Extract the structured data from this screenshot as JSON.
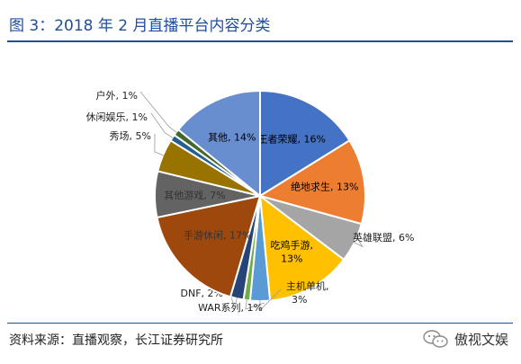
{
  "header": {
    "title": "图 3：2018 年 2 月直播平台内容分类"
  },
  "footer": {
    "source": "资料来源：直播观察，长江证券研究所",
    "watermark": "傲视文娱"
  },
  "icons": {
    "watermark_icon": "wechat-icon"
  },
  "chart_data": {
    "type": "pie",
    "title": "",
    "start_angle_deg": 0,
    "direction": "clockwise",
    "slices": [
      {
        "name": "王者荣耀",
        "value": 16,
        "pct": "16%",
        "color": "#4472C4"
      },
      {
        "name": "绝地求生",
        "value": 13,
        "pct": "13%",
        "color": "#ED7D31"
      },
      {
        "name": "英雄联盟",
        "value": 6,
        "pct": "6%",
        "color": "#A5A5A5"
      },
      {
        "name": "吃鸡手游",
        "value": 13,
        "pct": "13%",
        "color": "#FFC000"
      },
      {
        "name": "主机单机",
        "value": 3,
        "pct": "3%",
        "color": "#5B9BD5"
      },
      {
        "name": "WAR系列",
        "value": 1,
        "pct": "1%",
        "color": "#70AD47"
      },
      {
        "name": "DNF",
        "value": 2,
        "pct": "2%",
        "color": "#264478"
      },
      {
        "name": "手游休闲",
        "value": 17,
        "pct": "17%",
        "color": "#9E480E"
      },
      {
        "name": "其他游戏",
        "value": 7,
        "pct": "7%",
        "color": "#636363"
      },
      {
        "name": "秀场",
        "value": 5,
        "pct": "5%",
        "color": "#997300"
      },
      {
        "name": "休闲娱乐",
        "value": 1,
        "pct": "1%",
        "color": "#255E91"
      },
      {
        "name": "户外",
        "value": 1,
        "pct": "1%",
        "color": "#43682B"
      },
      {
        "name": "其他",
        "value": 14,
        "pct": "14%",
        "color": "#698ED0"
      }
    ]
  }
}
